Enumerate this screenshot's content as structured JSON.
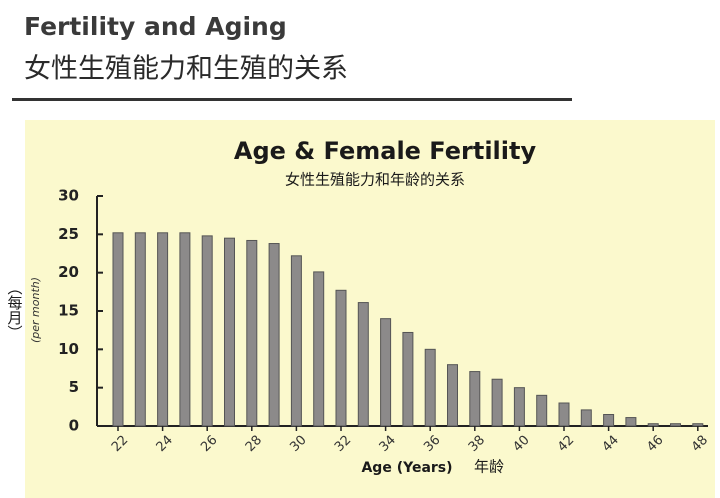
{
  "header": {
    "title": "Fertility and Aging",
    "subtitle": "女性生殖能力和生殖的关系"
  },
  "chart_data": {
    "type": "bar",
    "title": "Age & Female Fertility",
    "subtitle": "女性生殖能力和年龄的关系",
    "x_label": "Age (Years)",
    "x_label_zh": "年龄",
    "y_label": "(per month)",
    "y_label_zh": "（每月）",
    "categories": [
      "22",
      null,
      "24",
      null,
      "26",
      null,
      "28",
      null,
      "30",
      null,
      "32",
      null,
      "34",
      null,
      "36",
      null,
      "38",
      null,
      "40",
      null,
      "42",
      null,
      "44",
      null,
      "46",
      null,
      "48"
    ],
    "values": [
      25.2,
      25.2,
      25.2,
      25.2,
      24.8,
      24.5,
      24.2,
      23.8,
      22.2,
      20.1,
      17.7,
      16.1,
      14.0,
      12.2,
      10.0,
      8.0,
      7.1,
      6.1,
      5.0,
      4.0,
      3.0,
      2.1,
      1.5,
      1.1,
      0.3,
      0.3,
      0.3
    ],
    "color": "#8c8a8a",
    "ylim": [
      0,
      30
    ],
    "yticks": [
      0,
      5,
      10,
      15,
      20,
      25,
      30
    ]
  }
}
